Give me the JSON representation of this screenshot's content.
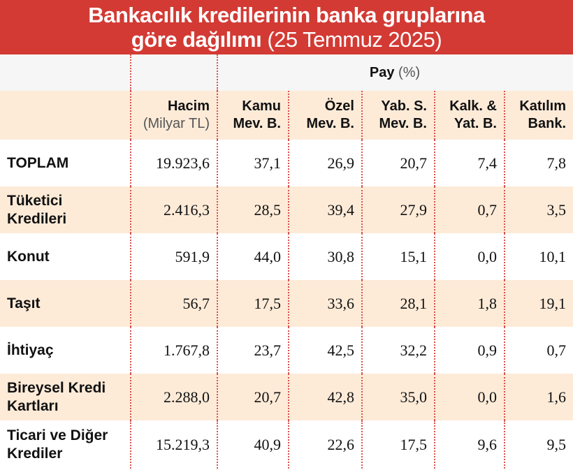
{
  "header": {
    "title_lines": [
      "Bankacılık kredilerinin banka gruplarına",
      "göre dağılımı"
    ],
    "date": "(25 Temmuz 2025)"
  },
  "table": {
    "group_label": "Pay",
    "group_unit": "(%)",
    "columns": [
      {
        "lines": [
          "Hacim"
        ],
        "unit": "(Milyar TL)"
      },
      {
        "lines": [
          "Kamu",
          "Mev. B."
        ]
      },
      {
        "lines": [
          "Özel",
          "Mev. B."
        ]
      },
      {
        "lines": [
          "Yab. S.",
          "Mev. B."
        ]
      },
      {
        "lines": [
          "Kalk. &",
          "Yat. B."
        ]
      },
      {
        "lines": [
          "Katılım",
          "Bank."
        ]
      }
    ],
    "rows": [
      {
        "label": [
          "TOPLAM"
        ],
        "cells": [
          "19.923,6",
          "37,1",
          "26,9",
          "20,7",
          "7,4",
          "7,8"
        ]
      },
      {
        "label": [
          "Tüketici",
          "Kredileri"
        ],
        "cells": [
          "2.416,3",
          "28,5",
          "39,4",
          "27,9",
          "0,7",
          "3,5"
        ]
      },
      {
        "label": [
          "Konut"
        ],
        "cells": [
          "591,9",
          "44,0",
          "30,8",
          "15,1",
          "0,0",
          "10,1"
        ]
      },
      {
        "label": [
          "Taşıt"
        ],
        "cells": [
          "56,7",
          "17,5",
          "33,6",
          "28,1",
          "1,8",
          "19,1"
        ]
      },
      {
        "label": [
          "İhtiyaç"
        ],
        "cells": [
          "1.767,8",
          "23,7",
          "42,5",
          "32,2",
          "0,9",
          "0,7"
        ]
      },
      {
        "label": [
          "Bireysel Kredi",
          "Kartları"
        ],
        "cells": [
          "2.288,0",
          "20,7",
          "42,8",
          "35,0",
          "0,0",
          "1,6"
        ]
      },
      {
        "label": [
          "Ticari ve Diğer",
          "Krediler"
        ],
        "cells": [
          "15.219,3",
          "40,9",
          "22,6",
          "17,5",
          "9,6",
          "9,5"
        ]
      }
    ]
  }
}
